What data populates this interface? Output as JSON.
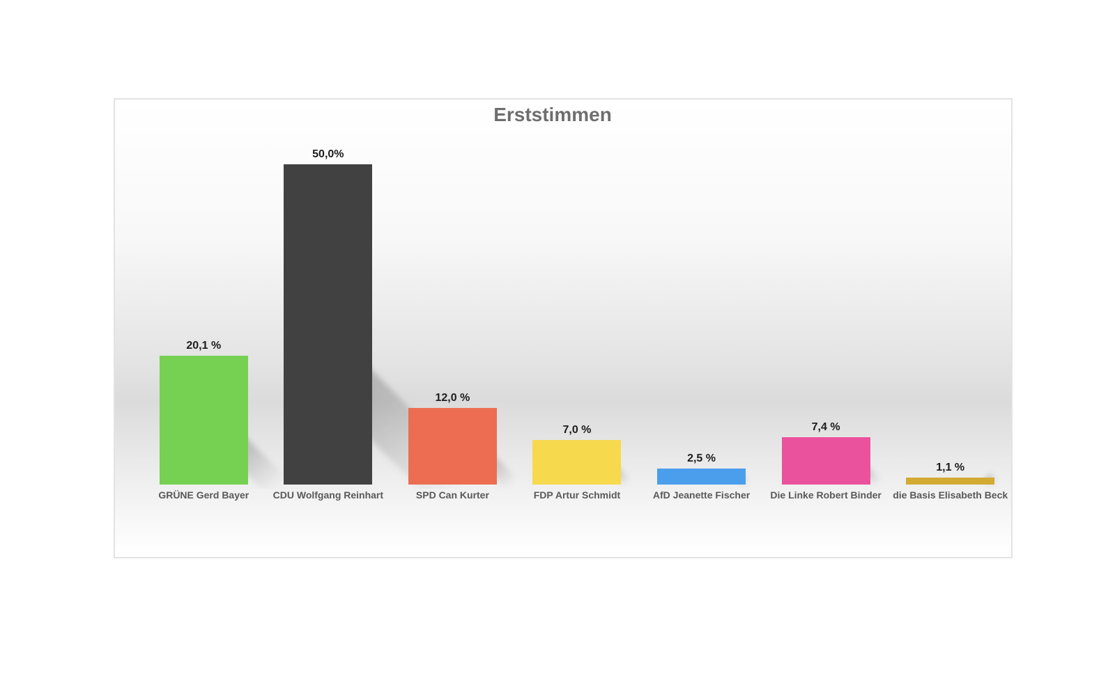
{
  "page": {
    "background_color": "#ffffff"
  },
  "panel": {
    "border_color": "#e3e3e3",
    "background_top_color": "#ffffff",
    "background_mid_color": "#dbdbdb",
    "background_bottom_color": "#ffffff"
  },
  "chart_data": {
    "type": "bar",
    "title": "Erststimmen",
    "title_color": "#6e6e6e",
    "xlabel": "",
    "ylabel": "",
    "ylim": [
      0,
      60
    ],
    "grid": false,
    "legend": false,
    "categories": [
      "GRÜNE Gerd Bayer",
      "CDU Wolfgang Reinhart",
      "SPD Can Kurter",
      "FDP Artur Schmidt",
      "AfD Jeanette Fischer",
      "Die Linke Robert Binder",
      "die Basis Elisabeth Beck"
    ],
    "values": [
      20.1,
      50.0,
      12.0,
      7.0,
      2.5,
      7.4,
      1.1
    ],
    "value_labels": [
      "20,1 %",
      "50,0%",
      "12,0 %",
      "7,0 %",
      "2,5 %",
      "7,4 %",
      "1,1 %"
    ],
    "bar_colors": [
      "#76d052",
      "#414141",
      "#ec6d52",
      "#f7d94e",
      "#4a9eec",
      "#ea529d",
      "#d3aa32"
    ],
    "value_label_color": "#1d1d1d",
    "category_label_color": "#595959"
  }
}
